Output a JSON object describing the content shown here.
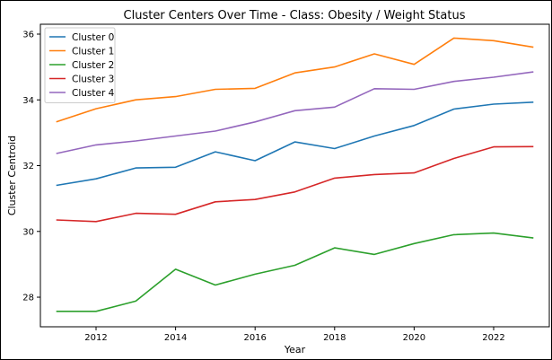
{
  "chart_data": {
    "type": "line",
    "title": "Cluster Centers Over Time - Class: Obesity / Weight Status",
    "xlabel": "Year",
    "ylabel": "Cluster Centroid",
    "xlim": [
      2010.6,
      2023.4
    ],
    "ylim": [
      27.1,
      36.3
    ],
    "xticks": [
      2012,
      2014,
      2016,
      2018,
      2020,
      2022
    ],
    "yticks": [
      28,
      30,
      32,
      34,
      36
    ],
    "legend_position": "top-left",
    "grid": false,
    "x": [
      2011,
      2012,
      2013,
      2014,
      2015,
      2016,
      2017,
      2018,
      2019,
      2020,
      2021,
      2022,
      2023
    ],
    "series": [
      {
        "name": "Cluster 0",
        "color": "#1f77b4",
        "values": [
          31.4,
          31.6,
          31.93,
          31.95,
          32.42,
          32.15,
          32.72,
          32.52,
          32.9,
          33.22,
          33.72,
          33.87,
          33.93
        ]
      },
      {
        "name": "Cluster 1",
        "color": "#ff7f0e",
        "values": [
          33.33,
          33.73,
          34.0,
          34.1,
          34.32,
          34.35,
          34.82,
          35.0,
          35.4,
          35.08,
          35.88,
          35.8,
          35.6
        ]
      },
      {
        "name": "Cluster 2",
        "color": "#2ca02c",
        "values": [
          27.57,
          27.57,
          27.88,
          28.85,
          28.37,
          28.7,
          28.97,
          29.5,
          29.3,
          29.63,
          29.9,
          29.95,
          29.8
        ]
      },
      {
        "name": "Cluster 3",
        "color": "#d62728",
        "values": [
          30.35,
          30.3,
          30.55,
          30.52,
          30.9,
          30.97,
          31.2,
          31.62,
          31.73,
          31.78,
          32.22,
          32.57,
          32.58
        ]
      },
      {
        "name": "Cluster 4",
        "color": "#9467bd",
        "values": [
          32.37,
          32.63,
          32.75,
          32.9,
          33.05,
          33.33,
          33.67,
          33.78,
          34.34,
          34.32,
          34.56,
          34.69,
          34.85
        ]
      }
    ]
  }
}
